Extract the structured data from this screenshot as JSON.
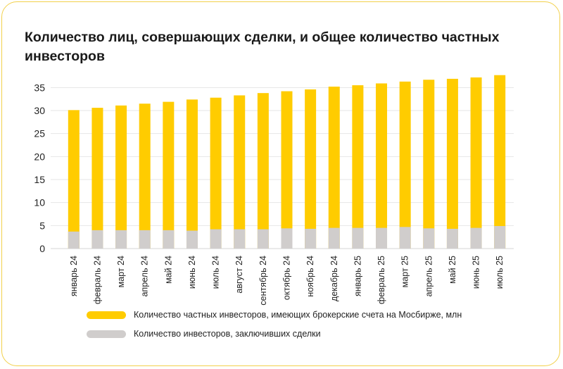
{
  "title": "Количество лиц, совершающих сделки, и общее количество частных инвесторов",
  "colors": {
    "total": "#FFCC00",
    "active": "#D0CDCC",
    "grid": "#E6E6E6",
    "border": "#F2D04A"
  },
  "chart_data": {
    "type": "bar",
    "categories": [
      "январь 24",
      "февраль 24",
      "март 24",
      "апрель 24",
      "май 24",
      "июнь 24",
      "июль 24",
      "август 24",
      "сентябрь 24",
      "октябрь 24",
      "ноябрь 24",
      "декабрь 24",
      "январь 25",
      "февраль 25",
      "март 25",
      "апрель 25",
      "май 25",
      "июнь 25",
      "июль 25"
    ],
    "series": [
      {
        "name": "Количество частных инвесторов, имеющих брокерские счета на Мосбирже, млн",
        "values": [
          30.1,
          30.6,
          31.1,
          31.5,
          31.9,
          32.4,
          32.8,
          33.3,
          33.8,
          34.2,
          34.6,
          35.2,
          35.5,
          35.9,
          36.3,
          36.7,
          36.9,
          37.2,
          37.7
        ]
      },
      {
        "name": "Количество инвесторов, заключивших сделки",
        "values": [
          3.7,
          4.0,
          4.0,
          4.0,
          4.0,
          3.9,
          4.2,
          4.2,
          4.2,
          4.4,
          4.3,
          4.5,
          4.5,
          4.5,
          4.7,
          4.4,
          4.3,
          4.5,
          4.9
        ]
      }
    ],
    "yticks": [
      0,
      5,
      10,
      15,
      20,
      25,
      30,
      35
    ],
    "ylim": [
      0,
      37.5
    ],
    "grid": true,
    "legend_position": "bottom"
  }
}
